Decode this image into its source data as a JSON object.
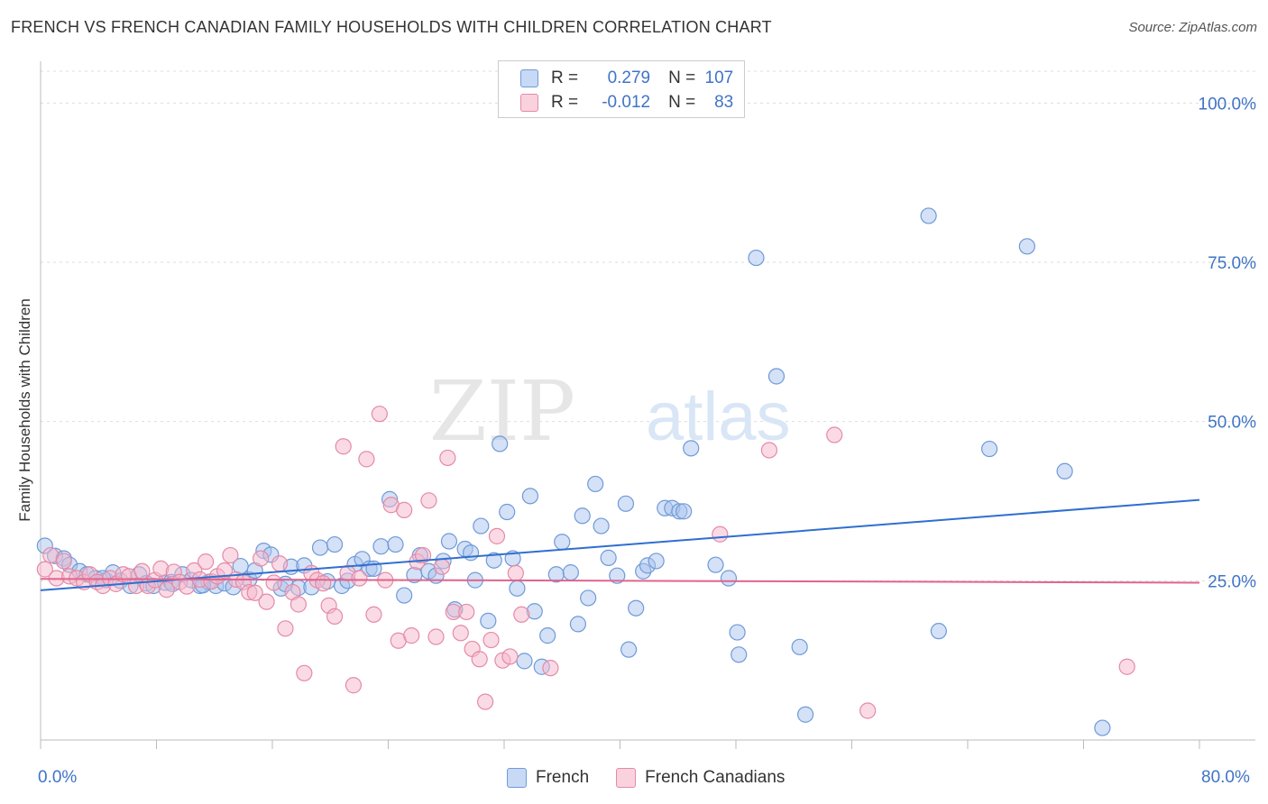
{
  "header": {
    "title": "FRENCH VS FRENCH CANADIAN FAMILY HOUSEHOLDS WITH CHILDREN CORRELATION CHART",
    "source": "Source: ZipAtlas.com"
  },
  "watermark": {
    "zip": "ZIP",
    "atlas": "atlas"
  },
  "legend": {
    "rows": [
      {
        "r_label": "R =",
        "r_value": "0.279",
        "n_label": "N =",
        "n_value": "107",
        "color": "#a9c4ee"
      },
      {
        "r_label": "R =",
        "r_value": "-0.012",
        "n_label": "N =",
        "n_value": "83",
        "color": "#f5b8cb"
      }
    ]
  },
  "x_axis": {
    "min_label": "0.0%",
    "max_label": "80.0%"
  },
  "colors": {
    "french_fill": "#a9c4ee",
    "french_stroke": "#6f9ad8",
    "french_line": "#2f6fcf",
    "fc_fill": "#f5b8cb",
    "fc_stroke": "#e58aa6",
    "fc_line": "#e0648e",
    "grid": "#dddddd",
    "tick_label": "#3f74c6"
  },
  "chart_data": {
    "type": "scatter",
    "title": "FRENCH VS FRENCH CANADIAN FAMILY HOUSEHOLDS WITH CHILDREN CORRELATION CHART",
    "xlabel": "",
    "ylabel": "Family Households with Children",
    "xlim": [
      0,
      80
    ],
    "ylim": [
      0,
      105
    ],
    "y_ticks": [
      {
        "value": 25,
        "label": "25.0%"
      },
      {
        "value": 50,
        "label": "50.0%"
      },
      {
        "value": 75,
        "label": "75.0%"
      },
      {
        "value": 100,
        "label": "100.0%"
      }
    ],
    "grid": true,
    "legend_position": "top-center",
    "series": [
      {
        "name": "French",
        "trend": {
          "x": [
            0,
            80
          ],
          "y": [
            23.5,
            37.7
          ]
        },
        "points": [
          [
            0.3,
            30.5
          ],
          [
            1.0,
            28.9
          ],
          [
            1.6,
            28.5
          ],
          [
            2.0,
            27.5
          ],
          [
            2.7,
            26.5
          ],
          [
            3.2,
            26.0
          ],
          [
            3.8,
            25.4
          ],
          [
            4.5,
            25.1
          ],
          [
            5.0,
            26.3
          ],
          [
            5.5,
            25.0
          ],
          [
            6.2,
            24.2
          ],
          [
            6.8,
            26.0
          ],
          [
            7.3,
            24.6
          ],
          [
            7.8,
            24.2
          ],
          [
            8.6,
            24.7
          ],
          [
            9.0,
            24.8
          ],
          [
            9.8,
            26.0
          ],
          [
            10.4,
            25.1
          ],
          [
            11.0,
            24.2
          ],
          [
            11.6,
            24.8
          ],
          [
            12.1,
            24.2
          ],
          [
            12.7,
            24.6
          ],
          [
            13.3,
            24.0
          ],
          [
            13.8,
            27.3
          ],
          [
            14.4,
            25.2
          ],
          [
            14.8,
            26.6
          ],
          [
            15.4,
            29.7
          ],
          [
            15.9,
            29.1
          ],
          [
            16.6,
            23.8
          ],
          [
            16.9,
            24.5
          ],
          [
            17.3,
            27.2
          ],
          [
            17.8,
            23.9
          ],
          [
            18.2,
            27.4
          ],
          [
            18.7,
            24.0
          ],
          [
            19.3,
            30.2
          ],
          [
            19.8,
            24.9
          ],
          [
            20.3,
            30.7
          ],
          [
            20.8,
            24.2
          ],
          [
            21.2,
            25.0
          ],
          [
            21.7,
            27.6
          ],
          [
            22.2,
            28.4
          ],
          [
            22.7,
            26.9
          ],
          [
            23.0,
            26.9
          ],
          [
            23.5,
            30.4
          ],
          [
            24.1,
            37.8
          ],
          [
            24.5,
            30.7
          ],
          [
            25.1,
            22.7
          ],
          [
            25.8,
            25.9
          ],
          [
            26.2,
            29.0
          ],
          [
            26.8,
            26.5
          ],
          [
            27.3,
            25.8
          ],
          [
            27.8,
            28.1
          ],
          [
            28.2,
            31.2
          ],
          [
            28.6,
            20.5
          ],
          [
            29.3,
            30.0
          ],
          [
            29.7,
            29.4
          ],
          [
            30.0,
            25.1
          ],
          [
            30.4,
            33.6
          ],
          [
            30.9,
            18.7
          ],
          [
            31.3,
            28.2
          ],
          [
            31.7,
            46.5
          ],
          [
            32.2,
            35.8
          ],
          [
            32.6,
            28.5
          ],
          [
            32.9,
            23.8
          ],
          [
            33.4,
            12.4
          ],
          [
            33.8,
            38.3
          ],
          [
            34.1,
            20.2
          ],
          [
            34.6,
            11.5
          ],
          [
            35.0,
            16.4
          ],
          [
            35.6,
            26.0
          ],
          [
            36.0,
            31.1
          ],
          [
            36.6,
            26.3
          ],
          [
            37.1,
            18.2
          ],
          [
            37.4,
            35.2
          ],
          [
            37.8,
            22.3
          ],
          [
            38.3,
            40.2
          ],
          [
            38.7,
            33.6
          ],
          [
            39.2,
            28.6
          ],
          [
            39.8,
            25.8
          ],
          [
            40.4,
            37.1
          ],
          [
            40.6,
            14.2
          ],
          [
            41.1,
            20.7
          ],
          [
            41.6,
            26.5
          ],
          [
            41.9,
            27.4
          ],
          [
            42.5,
            28.1
          ],
          [
            43.1,
            36.4
          ],
          [
            43.6,
            36.4
          ],
          [
            44.1,
            35.9
          ],
          [
            44.4,
            35.9
          ],
          [
            44.9,
            45.8
          ],
          [
            46.6,
            27.5
          ],
          [
            47.5,
            25.4
          ],
          [
            48.1,
            16.9
          ],
          [
            48.2,
            13.4
          ],
          [
            49.4,
            75.7
          ],
          [
            50.8,
            57.1
          ],
          [
            52.4,
            14.6
          ],
          [
            52.8,
            4.0
          ],
          [
            61.3,
            82.3
          ],
          [
            62.0,
            17.1
          ],
          [
            65.5,
            45.7
          ],
          [
            68.1,
            77.5
          ],
          [
            70.7,
            42.2
          ],
          [
            73.3,
            1.9
          ],
          [
            4.3,
            25.4
          ],
          [
            9.1,
            24.5
          ],
          [
            11.2,
            24.3
          ]
        ]
      },
      {
        "name": "French Canadians",
        "trend": {
          "x": [
            0,
            80
          ],
          "y": [
            25.3,
            24.7
          ]
        },
        "points": [
          [
            0.3,
            26.8
          ],
          [
            0.7,
            29.0
          ],
          [
            1.1,
            25.4
          ],
          [
            1.6,
            28.1
          ],
          [
            2.0,
            25.7
          ],
          [
            2.5,
            25.4
          ],
          [
            3.0,
            24.8
          ],
          [
            3.4,
            26.0
          ],
          [
            3.9,
            24.8
          ],
          [
            4.3,
            24.2
          ],
          [
            4.8,
            25.4
          ],
          [
            5.2,
            24.5
          ],
          [
            5.7,
            26.0
          ],
          [
            6.1,
            25.7
          ],
          [
            6.6,
            24.2
          ],
          [
            7.0,
            26.5
          ],
          [
            7.4,
            24.2
          ],
          [
            7.9,
            25.1
          ],
          [
            8.3,
            26.9
          ],
          [
            8.7,
            23.6
          ],
          [
            9.2,
            26.4
          ],
          [
            9.6,
            24.8
          ],
          [
            10.1,
            24.1
          ],
          [
            10.6,
            26.6
          ],
          [
            11.0,
            25.2
          ],
          [
            11.4,
            28.0
          ],
          [
            11.8,
            24.9
          ],
          [
            12.2,
            25.7
          ],
          [
            12.7,
            26.6
          ],
          [
            13.1,
            29.0
          ],
          [
            13.5,
            25.2
          ],
          [
            14.0,
            24.8
          ],
          [
            14.4,
            23.2
          ],
          [
            14.8,
            23.1
          ],
          [
            15.2,
            28.5
          ],
          [
            15.6,
            21.7
          ],
          [
            16.1,
            24.7
          ],
          [
            16.5,
            27.7
          ],
          [
            16.9,
            17.5
          ],
          [
            17.4,
            23.2
          ],
          [
            17.8,
            21.3
          ],
          [
            18.2,
            10.5
          ],
          [
            18.7,
            26.2
          ],
          [
            19.1,
            25.1
          ],
          [
            19.5,
            24.6
          ],
          [
            19.9,
            21.1
          ],
          [
            20.3,
            19.4
          ],
          [
            20.9,
            46.1
          ],
          [
            21.2,
            26.2
          ],
          [
            21.6,
            8.6
          ],
          [
            22.0,
            25.4
          ],
          [
            22.5,
            44.1
          ],
          [
            23.0,
            19.7
          ],
          [
            23.4,
            51.2
          ],
          [
            23.8,
            25.1
          ],
          [
            24.2,
            36.9
          ],
          [
            24.7,
            15.6
          ],
          [
            25.1,
            36.1
          ],
          [
            25.6,
            16.4
          ],
          [
            26.0,
            28.0
          ],
          [
            26.4,
            29.0
          ],
          [
            26.8,
            37.6
          ],
          [
            27.3,
            16.2
          ],
          [
            27.7,
            27.2
          ],
          [
            28.1,
            44.3
          ],
          [
            28.5,
            20.1
          ],
          [
            29.0,
            16.8
          ],
          [
            29.4,
            20.1
          ],
          [
            29.8,
            14.3
          ],
          [
            30.3,
            12.7
          ],
          [
            30.7,
            6.0
          ],
          [
            31.1,
            15.7
          ],
          [
            31.5,
            32.0
          ],
          [
            31.9,
            12.5
          ],
          [
            32.4,
            13.1
          ],
          [
            32.8,
            26.2
          ],
          [
            33.2,
            19.7
          ],
          [
            35.2,
            11.3
          ],
          [
            46.9,
            32.3
          ],
          [
            50.3,
            45.5
          ],
          [
            54.8,
            47.9
          ],
          [
            57.1,
            4.6
          ],
          [
            75.0,
            11.5
          ]
        ]
      }
    ]
  }
}
